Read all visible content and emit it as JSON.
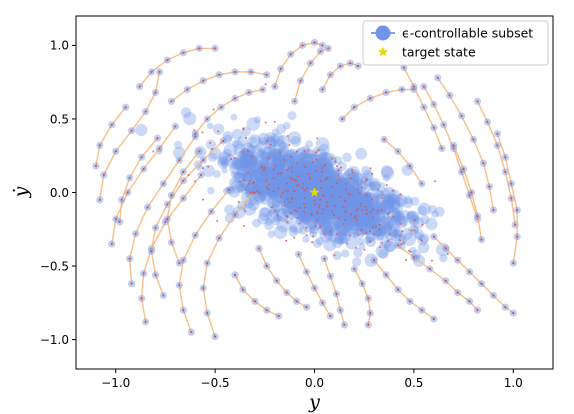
{
  "chart_data": {
    "type": "scatter",
    "title": "",
    "xlabel": "y",
    "ylabel": "ẏ",
    "xlim": [
      -1.2,
      1.2
    ],
    "ylim": [
      -1.2,
      1.2
    ],
    "xticks": [
      -1.0,
      -0.5,
      0.0,
      0.5,
      1.0
    ],
    "yticks": [
      -1.0,
      -0.5,
      0.0,
      0.5,
      1.0
    ],
    "xtick_labels": [
      "−1.0",
      "−0.5",
      "0.0",
      "0.5",
      "1.0"
    ],
    "ytick_labels": [
      "−1.0",
      "−0.5",
      "0.0",
      "0.5",
      "1.0"
    ],
    "grid": false,
    "legend_position": "top-right",
    "legend": [
      {
        "label": "ϵ-controllable subset",
        "marker": "circle",
        "color": "#6f94e8"
      },
      {
        "label": "target state",
        "marker": "star",
        "color": "#e8d800"
      }
    ],
    "colors": {
      "subset": "#6f94e8",
      "trajectory": "#f6b97a",
      "sample_point": "#d9534f",
      "target": "#e8d800"
    },
    "target_state": {
      "x": 0.0,
      "y": 0.0
    },
    "trajectories": [
      {
        "x": [
          -1.08,
          -1.06,
          -1.0,
          -0.92,
          -0.85,
          -0.8,
          -0.78
        ],
        "y": [
          -0.05,
          0.12,
          0.28,
          0.42,
          0.55,
          0.68,
          0.82
        ]
      },
      {
        "x": [
          -1.02,
          -1.0,
          -0.94,
          -0.86,
          -0.78,
          -0.7
        ],
        "y": [
          -0.35,
          -0.18,
          0.0,
          0.16,
          0.3,
          0.45
        ]
      },
      {
        "x": [
          -0.92,
          -0.93,
          -0.9,
          -0.84,
          -0.76,
          -0.68,
          -0.6
        ],
        "y": [
          -0.62,
          -0.45,
          -0.28,
          -0.1,
          0.06,
          0.22,
          0.38
        ]
      },
      {
        "x": [
          -0.85,
          -0.87,
          -0.86,
          -0.82,
          -0.75,
          -0.66,
          -0.57
        ],
        "y": [
          -0.88,
          -0.72,
          -0.55,
          -0.38,
          -0.2,
          -0.04,
          0.12
        ]
      },
      {
        "x": [
          -0.76,
          -0.8,
          -0.82,
          -0.8,
          -0.74,
          -0.66,
          -0.56,
          -0.46
        ],
        "y": [
          -0.7,
          -0.56,
          -0.4,
          -0.24,
          -0.08,
          0.08,
          0.22,
          0.35
        ]
      },
      {
        "x": [
          -0.62,
          -0.66,
          -0.68,
          -0.66,
          -0.6,
          -0.52,
          -0.43
        ],
        "y": [
          -0.95,
          -0.8,
          -0.63,
          -0.46,
          -0.29,
          -0.13,
          0.02
        ]
      },
      {
        "x": [
          -0.5,
          -0.54,
          -0.56,
          -0.54,
          -0.48,
          -0.4,
          -0.31
        ],
        "y": [
          -0.98,
          -0.82,
          -0.65,
          -0.48,
          -0.31,
          -0.15,
          0.0
        ]
      },
      {
        "x": [
          -1.1,
          -1.08,
          -1.02,
          -0.95
        ],
        "y": [
          0.18,
          0.32,
          0.46,
          0.58
        ]
      },
      {
        "x": [
          -0.72,
          -0.64,
          -0.56,
          -0.48,
          -0.4,
          -0.32,
          -0.24
        ],
        "y": [
          0.62,
          0.7,
          0.76,
          0.8,
          0.82,
          0.82,
          0.8
        ]
      },
      {
        "x": [
          -0.88,
          -0.82,
          -0.74,
          -0.66,
          -0.58,
          -0.5
        ],
        "y": [
          0.72,
          0.82,
          0.9,
          0.95,
          0.98,
          0.98
        ]
      },
      {
        "x": [
          -0.6,
          -0.54,
          -0.47,
          -0.4,
          -0.33,
          -0.26
        ],
        "y": [
          0.4,
          0.5,
          0.58,
          0.64,
          0.68,
          0.7
        ]
      },
      {
        "x": [
          -0.2,
          -0.17,
          -0.12,
          -0.06,
          0.0,
          0.04
        ],
        "y": [
          0.72,
          0.84,
          0.94,
          1.0,
          1.02,
          1.0
        ]
      },
      {
        "x": [
          -0.1,
          -0.07,
          -0.02,
          0.03,
          0.07
        ],
        "y": [
          0.62,
          0.76,
          0.88,
          0.96,
          0.98
        ]
      },
      {
        "x": [
          0.04,
          0.08,
          0.13,
          0.18,
          0.22
        ],
        "y": [
          0.7,
          0.8,
          0.86,
          0.88,
          0.86
        ]
      },
      {
        "x": [
          0.14,
          0.2,
          0.28,
          0.36,
          0.44,
          0.5
        ],
        "y": [
          0.5,
          0.58,
          0.64,
          0.68,
          0.7,
          0.7
        ]
      },
      {
        "x": [
          0.55,
          0.6,
          0.65,
          0.7,
          0.74,
          0.78,
          0.82
        ],
        "y": [
          0.72,
          0.6,
          0.46,
          0.3,
          0.14,
          -0.02,
          -0.18
        ]
      },
      {
        "x": [
          0.62,
          0.68,
          0.74,
          0.8,
          0.85,
          0.88,
          0.9
        ],
        "y": [
          0.78,
          0.66,
          0.52,
          0.36,
          0.2,
          0.04,
          -0.12
        ]
      },
      {
        "x": [
          0.82,
          0.87,
          0.92,
          0.96,
          0.99,
          1.01
        ],
        "y": [
          0.62,
          0.48,
          0.32,
          0.14,
          -0.04,
          -0.22
        ]
      },
      {
        "x": [
          0.92,
          0.96,
          0.99,
          1.02,
          1.02,
          1.0
        ],
        "y": [
          0.4,
          0.24,
          0.06,
          -0.12,
          -0.3,
          -0.48
        ]
      },
      {
        "x": [
          0.7,
          0.75,
          0.79,
          0.82,
          0.84
        ],
        "y": [
          0.32,
          0.16,
          0.0,
          -0.16,
          -0.32
        ]
      },
      {
        "x": [
          0.42,
          0.5,
          0.58,
          0.66,
          0.72,
          0.78,
          0.82
        ],
        "y": [
          -0.36,
          -0.44,
          -0.52,
          -0.6,
          -0.68,
          -0.74,
          -0.8
        ]
      },
      {
        "x": [
          0.6,
          0.66,
          0.72,
          0.78,
          0.84,
          0.9,
          0.96,
          1.0
        ],
        "y": [
          -0.3,
          -0.38,
          -0.46,
          -0.54,
          -0.62,
          -0.7,
          -0.78,
          -0.82
        ]
      },
      {
        "x": [
          0.3,
          0.36,
          0.42,
          0.48,
          0.54,
          0.6
        ],
        "y": [
          -0.46,
          -0.56,
          -0.66,
          -0.74,
          -0.8,
          -0.86
        ]
      },
      {
        "x": [
          0.2,
          0.24,
          0.27,
          0.28,
          0.27
        ],
        "y": [
          -0.52,
          -0.62,
          -0.72,
          -0.82,
          -0.9
        ]
      },
      {
        "x": [
          0.05,
          0.08,
          0.11,
          0.13,
          0.15
        ],
        "y": [
          -0.45,
          -0.57,
          -0.69,
          -0.8,
          -0.9
        ]
      },
      {
        "x": [
          -0.08,
          -0.04,
          0.0,
          0.04,
          0.08
        ],
        "y": [
          -0.42,
          -0.54,
          -0.65,
          -0.75,
          -0.84
        ]
      },
      {
        "x": [
          -0.28,
          -0.24,
          -0.19,
          -0.14,
          -0.09,
          -0.04
        ],
        "y": [
          -0.38,
          -0.5,
          -0.6,
          -0.68,
          -0.74,
          -0.78
        ]
      },
      {
        "x": [
          -0.4,
          -0.36,
          -0.3,
          -0.24,
          -0.18
        ],
        "y": [
          -0.56,
          -0.66,
          -0.74,
          -0.8,
          -0.84
        ]
      },
      {
        "x": [
          -0.98,
          -0.97,
          -0.93,
          -0.87,
          -0.79
        ],
        "y": [
          -0.2,
          -0.05,
          0.1,
          0.24,
          0.37
        ]
      },
      {
        "x": [
          -0.68,
          -0.72,
          -0.74,
          -0.72,
          -0.66,
          -0.58
        ],
        "y": [
          -0.48,
          -0.34,
          -0.18,
          -0.02,
          0.14,
          0.28
        ]
      },
      {
        "x": [
          0.45,
          0.5,
          0.55,
          0.6,
          0.64
        ],
        "y": [
          0.85,
          0.72,
          0.58,
          0.44,
          0.3
        ]
      },
      {
        "x": [
          0.35,
          0.42,
          0.48,
          0.54
        ],
        "y": [
          0.36,
          0.28,
          0.18,
          0.06
        ]
      }
    ]
  },
  "legend": {
    "items": [
      {
        "label": "ϵ-controllable subset"
      },
      {
        "label": "target state"
      }
    ]
  }
}
